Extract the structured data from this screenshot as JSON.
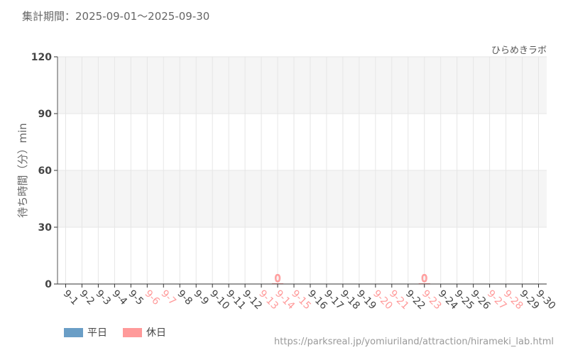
{
  "header": {
    "period": "集計期間：2025-09-01～2025-09-30",
    "source": "ひらめきラボ"
  },
  "footer": {
    "url": "https://parksreal.jp/yomiuriland/attraction/hirameki_lab.html"
  },
  "chart_data": {
    "type": "bar",
    "title": "",
    "xlabel": "",
    "ylabel": "待ち時間（分）min",
    "ylim": [
      0,
      120
    ],
    "yticks": [
      0,
      30,
      60,
      90,
      120
    ],
    "grid": true,
    "legend_position": "bottom-left",
    "categories": [
      "9-1",
      "9-2",
      "9-3",
      "9-4",
      "9-5",
      "9-6",
      "9-7",
      "9-8",
      "9-9",
      "9-10",
      "9-11",
      "9-12",
      "9-13",
      "9-14",
      "9-15",
      "9-16",
      "9-17",
      "9-18",
      "9-19",
      "9-20",
      "9-21",
      "9-22",
      "9-23",
      "9-24",
      "9-25",
      "9-26",
      "9-27",
      "9-28",
      "9-29",
      "9-30"
    ],
    "holidays": [
      "9-6",
      "9-7",
      "9-13",
      "9-14",
      "9-15",
      "9-20",
      "9-21",
      "9-23",
      "9-27",
      "9-28"
    ],
    "values": [
      null,
      null,
      null,
      null,
      null,
      null,
      null,
      null,
      null,
      null,
      null,
      null,
      null,
      0,
      null,
      null,
      null,
      null,
      null,
      null,
      null,
      null,
      0,
      null,
      null,
      null,
      null,
      null,
      null,
      null
    ],
    "data_labels": {
      "9-14": "0",
      "9-23": "0"
    },
    "series": [
      {
        "name": "平日",
        "color": "#6a9ec6"
      },
      {
        "name": "休日",
        "color": "#ff9a9a"
      }
    ]
  }
}
